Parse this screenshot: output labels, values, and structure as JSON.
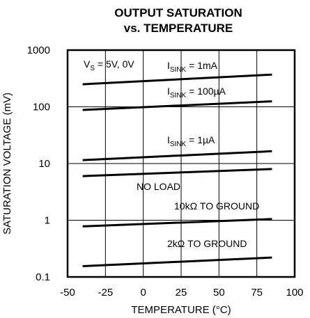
{
  "chart_data": {
    "type": "line",
    "title": [
      "OUTPUT SATURATION",
      "vs. TEMPERATURE"
    ],
    "xlabel": "TEMPERATURE (°C)",
    "ylabel": "SATURATION VOLTAGE (mV)",
    "xlim": [
      -50,
      100
    ],
    "ylim": [
      0.1,
      1000
    ],
    "yscale": "log",
    "grid": true,
    "x_ticks": [
      "-50",
      "-25",
      "0",
      "25",
      "50",
      "75",
      "100"
    ],
    "y_ticks": [
      "0.1",
      "1",
      "10",
      "100",
      "1000"
    ],
    "conditions": {
      "main": "V",
      "sub": "S",
      "rest": " = 5V, 0V"
    },
    "series": [
      {
        "id": "isink-1ma",
        "label": {
          "main": "I",
          "sub": "SINK",
          "rest": " = 1mA"
        },
        "x": [
          -40,
          85
        ],
        "y": [
          250,
          370
        ]
      },
      {
        "id": "isink-100ua",
        "label": {
          "main": "I",
          "sub": "SINK",
          "rest": " = 100µA"
        },
        "x": [
          -40,
          85
        ],
        "y": [
          88,
          125
        ]
      },
      {
        "id": "isink-1ua",
        "label": {
          "main": "I",
          "sub": "SINK",
          "rest": " = 1µA"
        },
        "x": [
          -40,
          85
        ],
        "y": [
          11.5,
          16.5
        ]
      },
      {
        "id": "no-load",
        "label": {
          "main": "NO LOAD",
          "sub": "",
          "rest": ""
        },
        "x": [
          -40,
          85
        ],
        "y": [
          6.0,
          8.0
        ]
      },
      {
        "id": "10k-ground",
        "label": {
          "main": "10kΩ TO GROUND",
          "sub": "",
          "rest": ""
        },
        "x": [
          -40,
          85
        ],
        "y": [
          0.78,
          1.05
        ]
      },
      {
        "id": "2k-ground",
        "label": {
          "main": "2kΩ TO GROUND",
          "sub": "",
          "rest": ""
        },
        "x": [
          -40,
          85
        ],
        "y": [
          0.155,
          0.22
        ]
      }
    ]
  }
}
